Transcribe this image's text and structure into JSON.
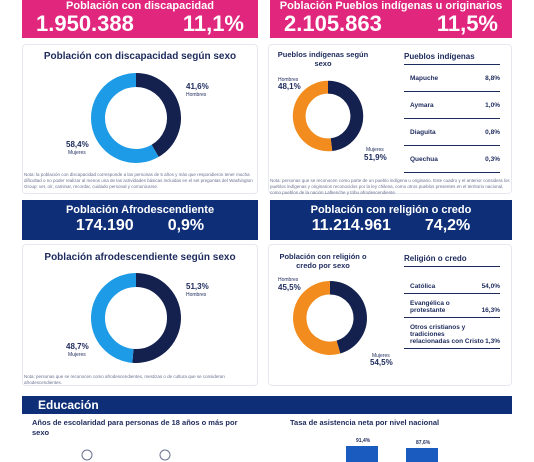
{
  "disability_band": {
    "title": "Población con discapacidad",
    "value": "1.950.388",
    "percent": "11,1%"
  },
  "indigenous_band": {
    "title": "Población Pueblos indígenas u originarios",
    "value": "2.105.863",
    "percent": "11,5%"
  },
  "disability_sex": {
    "title": "Población con discapacidad según sexo",
    "men_pct": "41,6%",
    "men_label": "Hombres",
    "women_pct": "58,4%",
    "women_label": "Mujeres",
    "footnote": "Nota: la población con discapacidad corresponde a las personas de 5 años y más que respondieron tener mucha dificultad o no poder realizar al menos una de las actividades básicas incluidas en el set preguntas del Washington Group: ver, oír, caminar, recordar, cuidado personal y comunicarse."
  },
  "indigenous_sex": {
    "title": "Pueblos indígenas según sexo",
    "men_label": "Hombres",
    "men_pct": "48,1%",
    "women_label": "Mujeres",
    "women_pct": "51,9%"
  },
  "indigenous_table": {
    "title": "Pueblos indígenas",
    "rows": [
      {
        "name": "Mapuche",
        "value": "8,8%"
      },
      {
        "name": "Aymara",
        "value": "1,0%"
      },
      {
        "name": "Diaguita",
        "value": "0,8%"
      },
      {
        "name": "Quechua",
        "value": "0,3%"
      }
    ],
    "footnote": "Nota: personas que se reconocen como parte de un pueblo indígena u originario. Este cuadro y el anterior considera los pueblos indígenas y originarios reconocidos por la ley chilena, como otros pueblos presentes en el territorio nacional, como pueblos de la nación Lafkenche y tribu afrodescendiente."
  },
  "afro_band": {
    "title": "Población Afrodescendiente",
    "value": "174.190",
    "percent": "0,9%"
  },
  "religion_band": {
    "title": "Población con religión o credo",
    "value": "11.214.961",
    "percent": "74,2%"
  },
  "afro_sex": {
    "title": "Población afrodescendiente según sexo",
    "men_pct": "51,3%",
    "men_label": "Hombres",
    "women_pct": "48,7%",
    "women_label": "Mujeres",
    "footnote": "Nota: personas que se reconocen como afrodescendientes, mestizas o de cultura que se consideran afrodescendientes."
  },
  "religion_sex": {
    "title": "Población con religión o credo por sexo",
    "men_label": "Hombres",
    "men_pct": "45,5%",
    "women_label": "Mujeres",
    "women_pct": "54,5%"
  },
  "religion_table": {
    "title": "Religión o credo",
    "rows": [
      {
        "name": "Católica",
        "value": "54,0%"
      },
      {
        "name": "Evangélica o protestante",
        "value": "16,3%"
      },
      {
        "name": "Otros cristianos y tradiciones relacionadas con Cristo",
        "value": "1,3%"
      }
    ]
  },
  "education": {
    "title": "Educación",
    "left_title": "Años de escolaridad para personas de 18 años o más por sexo",
    "right_title": "Tasa de asistencia neta por nivel nacional",
    "bar_labels": [
      "91,4%",
      "87,6%"
    ]
  },
  "colors": {
    "pink": "#e0277d",
    "navy": "#0e2f78",
    "dark_ring": "#14214f",
    "blue_ring": "#1d9be6",
    "orange": "#f28c1e",
    "bar_blue": "#1a5bbf"
  },
  "chart_data": [
    {
      "type": "pie",
      "title": "Población con discapacidad según sexo",
      "categories": [
        "Hombres",
        "Mujeres"
      ],
      "values": [
        41.6,
        58.4
      ]
    },
    {
      "type": "pie",
      "title": "Pueblos indígenas según sexo",
      "categories": [
        "Hombres",
        "Mujeres"
      ],
      "values": [
        48.1,
        51.9
      ]
    },
    {
      "type": "pie",
      "title": "Población afrodescendiente según sexo",
      "categories": [
        "Hombres",
        "Mujeres"
      ],
      "values": [
        51.3,
        48.7
      ]
    },
    {
      "type": "pie",
      "title": "Población con religión o credo por sexo",
      "categories": [
        "Hombres",
        "Mujeres"
      ],
      "values": [
        45.5,
        54.5
      ]
    }
  ]
}
